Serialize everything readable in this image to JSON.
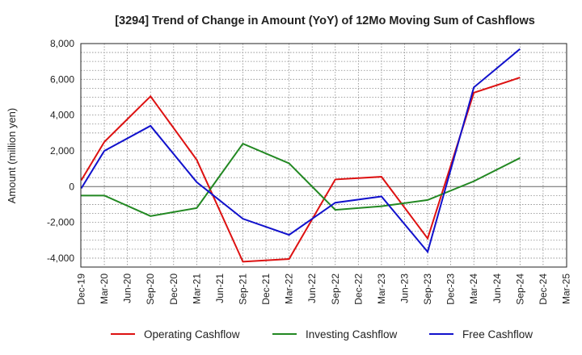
{
  "chart_data": {
    "type": "line",
    "title": "[3294]  Trend of Change in Amount (YoY) of 12Mo Moving Sum of Cashflows",
    "xlabel": "",
    "ylabel": "Amount (million yen)",
    "ylim": [
      -4500,
      8000
    ],
    "yticks": [
      -4000,
      -2000,
      0,
      2000,
      4000,
      6000,
      8000
    ],
    "ytick_labels": [
      "-4,000",
      "-2,000",
      "0",
      "2,000",
      "4,000",
      "6,000",
      "8,000"
    ],
    "categories": [
      "Dec-19",
      "Mar-20",
      "Jun-20",
      "Sep-20",
      "Dec-20",
      "Mar-21",
      "Jun-21",
      "Sep-21",
      "Dec-21",
      "Mar-22",
      "Jun-22",
      "Sep-22",
      "Dec-22",
      "Mar-23",
      "Jun-23",
      "Sep-23",
      "Dec-23",
      "Mar-24",
      "Jun-24",
      "Sep-24",
      "Dec-24",
      "Mar-25"
    ],
    "grid": true,
    "legend_position": "bottom",
    "series": [
      {
        "name": "Operating Cashflow",
        "color": "#dd1111",
        "values": [
          350,
          2500,
          null,
          5050,
          null,
          1500,
          null,
          -4200,
          null,
          -4050,
          null,
          400,
          null,
          550,
          null,
          -2900,
          null,
          5250,
          null,
          6100,
          null,
          null
        ]
      },
      {
        "name": "Investing Cashflow",
        "color": "#228822",
        "values": [
          -500,
          -500,
          null,
          -1650,
          null,
          -1200,
          null,
          2400,
          null,
          1300,
          null,
          -1300,
          null,
          -1100,
          null,
          -750,
          null,
          300,
          null,
          1600,
          null,
          null
        ]
      },
      {
        "name": "Free Cashflow",
        "color": "#1111cc",
        "values": [
          -100,
          2000,
          null,
          3400,
          null,
          250,
          null,
          -1800,
          null,
          -2700,
          null,
          -900,
          null,
          -550,
          null,
          -3650,
          null,
          5550,
          null,
          7700,
          null,
          null
        ]
      }
    ]
  }
}
